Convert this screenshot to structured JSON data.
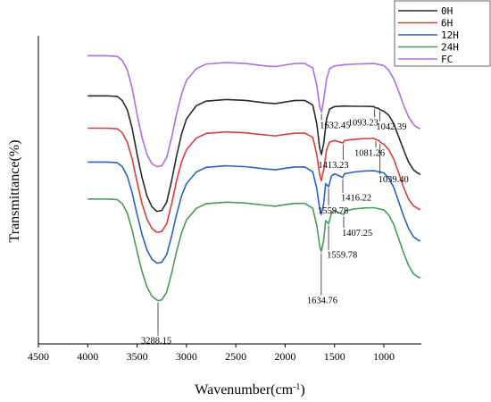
{
  "chart_data": {
    "type": "line",
    "xlabel": "Wavenumber(cm",
    "xlabel_sup": "-1",
    "xlabel_end": ")",
    "ylabel": "Transmittance(%)",
    "xlim": [
      4500,
      620
    ],
    "x_reversed": true,
    "xticks": [
      "4500",
      "4000",
      "3500",
      "3000",
      "2500",
      "2000",
      "1500",
      "1000"
    ],
    "grid": false,
    "legend_position": "top-right",
    "series": [
      {
        "name": "0H",
        "color": "#2b2b2b",
        "points": [
          [
            4000,
            0.805
          ],
          [
            3800,
            0.805
          ],
          [
            3700,
            0.803
          ],
          [
            3650,
            0.79
          ],
          [
            3600,
            0.76
          ],
          [
            3550,
            0.7
          ],
          [
            3500,
            0.615
          ],
          [
            3450,
            0.54
          ],
          [
            3400,
            0.48
          ],
          [
            3350,
            0.445
          ],
          [
            3300,
            0.43
          ],
          [
            3250,
            0.433
          ],
          [
            3200,
            0.46
          ],
          [
            3150,
            0.53
          ],
          [
            3100,
            0.61
          ],
          [
            3050,
            0.68
          ],
          [
            3000,
            0.73
          ],
          [
            2900,
            0.773
          ],
          [
            2800,
            0.788
          ],
          [
            2600,
            0.793
          ],
          [
            2400,
            0.79
          ],
          [
            2200,
            0.782
          ],
          [
            2100,
            0.78
          ],
          [
            2000,
            0.785
          ],
          [
            1900,
            0.79
          ],
          [
            1800,
            0.79
          ],
          [
            1720,
            0.775
          ],
          [
            1680,
            0.715
          ],
          [
            1650,
            0.635
          ],
          [
            1632,
            0.615
          ],
          [
            1610,
            0.65
          ],
          [
            1580,
            0.73
          ],
          [
            1550,
            0.762
          ],
          [
            1500,
            0.77
          ],
          [
            1400,
            0.772
          ],
          [
            1300,
            0.771
          ],
          [
            1200,
            0.771
          ],
          [
            1100,
            0.77
          ],
          [
            1093,
            0.767
          ],
          [
            1050,
            0.764
          ],
          [
            1042,
            0.76
          ],
          [
            1000,
            0.755
          ],
          [
            950,
            0.742
          ],
          [
            900,
            0.715
          ],
          [
            850,
            0.672
          ],
          [
            800,
            0.63
          ],
          [
            750,
            0.59
          ],
          [
            700,
            0.565
          ],
          [
            660,
            0.555
          ],
          [
            630,
            0.55
          ]
        ]
      },
      {
        "name": "6H",
        "color": "#d64040",
        "points": [
          [
            4000,
            0.7
          ],
          [
            3800,
            0.7
          ],
          [
            3700,
            0.698
          ],
          [
            3650,
            0.685
          ],
          [
            3600,
            0.655
          ],
          [
            3550,
            0.6
          ],
          [
            3500,
            0.525
          ],
          [
            3450,
            0.455
          ],
          [
            3400,
            0.405
          ],
          [
            3350,
            0.375
          ],
          [
            3300,
            0.362
          ],
          [
            3250,
            0.365
          ],
          [
            3200,
            0.39
          ],
          [
            3150,
            0.455
          ],
          [
            3100,
            0.53
          ],
          [
            3050,
            0.59
          ],
          [
            3000,
            0.63
          ],
          [
            2900,
            0.668
          ],
          [
            2800,
            0.683
          ],
          [
            2600,
            0.688
          ],
          [
            2400,
            0.685
          ],
          [
            2200,
            0.678
          ],
          [
            2100,
            0.675
          ],
          [
            2000,
            0.68
          ],
          [
            1900,
            0.684
          ],
          [
            1800,
            0.684
          ],
          [
            1720,
            0.67
          ],
          [
            1680,
            0.615
          ],
          [
            1650,
            0.548
          ],
          [
            1634,
            0.53
          ],
          [
            1610,
            0.565
          ],
          [
            1580,
            0.63
          ],
          [
            1550,
            0.655
          ],
          [
            1500,
            0.66
          ],
          [
            1413,
            0.652
          ],
          [
            1400,
            0.66
          ],
          [
            1300,
            0.664
          ],
          [
            1200,
            0.666
          ],
          [
            1100,
            0.667
          ],
          [
            1081,
            0.663
          ],
          [
            1050,
            0.66
          ],
          [
            1039,
            0.655
          ],
          [
            1000,
            0.648
          ],
          [
            950,
            0.63
          ],
          [
            900,
            0.6
          ],
          [
            850,
            0.555
          ],
          [
            800,
            0.508
          ],
          [
            750,
            0.47
          ],
          [
            700,
            0.448
          ],
          [
            660,
            0.44
          ],
          [
            630,
            0.436
          ]
        ]
      },
      {
        "name": "12H",
        "color": "#2a62c4",
        "points": [
          [
            4000,
            0.59
          ],
          [
            3800,
            0.59
          ],
          [
            3700,
            0.588
          ],
          [
            3650,
            0.575
          ],
          [
            3600,
            0.545
          ],
          [
            3550,
            0.49
          ],
          [
            3500,
            0.42
          ],
          [
            3450,
            0.355
          ],
          [
            3400,
            0.305
          ],
          [
            3350,
            0.275
          ],
          [
            3300,
            0.262
          ],
          [
            3250,
            0.265
          ],
          [
            3200,
            0.29
          ],
          [
            3150,
            0.35
          ],
          [
            3100,
            0.42
          ],
          [
            3050,
            0.48
          ],
          [
            3000,
            0.52
          ],
          [
            2900,
            0.558
          ],
          [
            2800,
            0.573
          ],
          [
            2600,
            0.578
          ],
          [
            2400,
            0.575
          ],
          [
            2200,
            0.568
          ],
          [
            2100,
            0.565
          ],
          [
            2000,
            0.57
          ],
          [
            1900,
            0.574
          ],
          [
            1800,
            0.574
          ],
          [
            1720,
            0.558
          ],
          [
            1680,
            0.505
          ],
          [
            1650,
            0.438
          ],
          [
            1634,
            0.42
          ],
          [
            1610,
            0.455
          ],
          [
            1590,
            0.52
          ],
          [
            1560,
            0.51
          ],
          [
            1530,
            0.545
          ],
          [
            1500,
            0.552
          ],
          [
            1416,
            0.54
          ],
          [
            1400,
            0.552
          ],
          [
            1300,
            0.558
          ],
          [
            1200,
            0.561
          ],
          [
            1100,
            0.562
          ],
          [
            1000,
            0.555
          ],
          [
            950,
            0.538
          ],
          [
            900,
            0.508
          ],
          [
            850,
            0.462
          ],
          [
            800,
            0.415
          ],
          [
            750,
            0.375
          ],
          [
            700,
            0.348
          ],
          [
            660,
            0.338
          ],
          [
            630,
            0.334
          ]
        ]
      },
      {
        "name": "24H",
        "color": "#4a9a5a",
        "points": [
          [
            4000,
            0.47
          ],
          [
            3800,
            0.47
          ],
          [
            3700,
            0.468
          ],
          [
            3650,
            0.455
          ],
          [
            3600,
            0.425
          ],
          [
            3550,
            0.37
          ],
          [
            3500,
            0.3
          ],
          [
            3450,
            0.235
          ],
          [
            3400,
            0.185
          ],
          [
            3350,
            0.155
          ],
          [
            3288,
            0.14
          ],
          [
            3250,
            0.143
          ],
          [
            3200,
            0.168
          ],
          [
            3150,
            0.23
          ],
          [
            3100,
            0.3
          ],
          [
            3050,
            0.36
          ],
          [
            3000,
            0.402
          ],
          [
            2900,
            0.44
          ],
          [
            2800,
            0.455
          ],
          [
            2600,
            0.46
          ],
          [
            2400,
            0.457
          ],
          [
            2200,
            0.45
          ],
          [
            2100,
            0.447
          ],
          [
            2000,
            0.452
          ],
          [
            1900,
            0.456
          ],
          [
            1800,
            0.456
          ],
          [
            1720,
            0.44
          ],
          [
            1680,
            0.385
          ],
          [
            1650,
            0.318
          ],
          [
            1634,
            0.3
          ],
          [
            1610,
            0.335
          ],
          [
            1590,
            0.4
          ],
          [
            1560,
            0.39
          ],
          [
            1530,
            0.425
          ],
          [
            1500,
            0.432
          ],
          [
            1407,
            0.42
          ],
          [
            1390,
            0.432
          ],
          [
            1300,
            0.438
          ],
          [
            1200,
            0.441
          ],
          [
            1100,
            0.442
          ],
          [
            1000,
            0.435
          ],
          [
            950,
            0.418
          ],
          [
            900,
            0.388
          ],
          [
            850,
            0.342
          ],
          [
            800,
            0.295
          ],
          [
            750,
            0.255
          ],
          [
            700,
            0.228
          ],
          [
            660,
            0.218
          ],
          [
            630,
            0.214
          ]
        ]
      },
      {
        "name": "FC",
        "color": "#b06ee0",
        "points": [
          [
            4000,
            0.935
          ],
          [
            3800,
            0.935
          ],
          [
            3700,
            0.933
          ],
          [
            3650,
            0.92
          ],
          [
            3600,
            0.89
          ],
          [
            3550,
            0.83
          ],
          [
            3500,
            0.745
          ],
          [
            3450,
            0.67
          ],
          [
            3400,
            0.615
          ],
          [
            3350,
            0.585
          ],
          [
            3300,
            0.575
          ],
          [
            3250,
            0.578
          ],
          [
            3200,
            0.605
          ],
          [
            3150,
            0.67
          ],
          [
            3100,
            0.745
          ],
          [
            3050,
            0.81
          ],
          [
            3000,
            0.855
          ],
          [
            2900,
            0.893
          ],
          [
            2800,
            0.908
          ],
          [
            2600,
            0.913
          ],
          [
            2400,
            0.91
          ],
          [
            2200,
            0.902
          ],
          [
            2100,
            0.9
          ],
          [
            2000,
            0.905
          ],
          [
            1900,
            0.91
          ],
          [
            1800,
            0.91
          ],
          [
            1720,
            0.895
          ],
          [
            1680,
            0.84
          ],
          [
            1650,
            0.77
          ],
          [
            1632,
            0.752
          ],
          [
            1610,
            0.79
          ],
          [
            1580,
            0.86
          ],
          [
            1550,
            0.893
          ],
          [
            1500,
            0.902
          ],
          [
            1400,
            0.906
          ],
          [
            1300,
            0.908
          ],
          [
            1200,
            0.909
          ],
          [
            1100,
            0.91
          ],
          [
            1000,
            0.903
          ],
          [
            950,
            0.888
          ],
          [
            900,
            0.86
          ],
          [
            850,
            0.82
          ],
          [
            800,
            0.775
          ],
          [
            750,
            0.737
          ],
          [
            700,
            0.712
          ],
          [
            660,
            0.702
          ],
          [
            630,
            0.698
          ]
        ]
      }
    ],
    "annotations": [
      {
        "text": "1632.45",
        "x": 1632,
        "series": "FC"
      },
      {
        "text": "1093.23",
        "x": 1093,
        "series": "0H"
      },
      {
        "text": "1042.39",
        "x": 1042,
        "series": "0H"
      },
      {
        "text": "1081.26",
        "x": 1081,
        "series": "6H"
      },
      {
        "text": "1413.23",
        "x": 1413,
        "series": "6H"
      },
      {
        "text": "1039.40",
        "x": 1039,
        "series": "6H"
      },
      {
        "text": "1559.78",
        "x": 1560,
        "series": "12H"
      },
      {
        "text": "1416.22",
        "x": 1416,
        "series": "12H"
      },
      {
        "text": "1559.78",
        "x": 1560,
        "series": "24H"
      },
      {
        "text": "1407.25",
        "x": 1407,
        "series": "24H"
      },
      {
        "text": "1634.76",
        "x": 1634,
        "series": "24H"
      },
      {
        "text": "3288.15",
        "x": 3288,
        "series": "24H"
      }
    ]
  }
}
